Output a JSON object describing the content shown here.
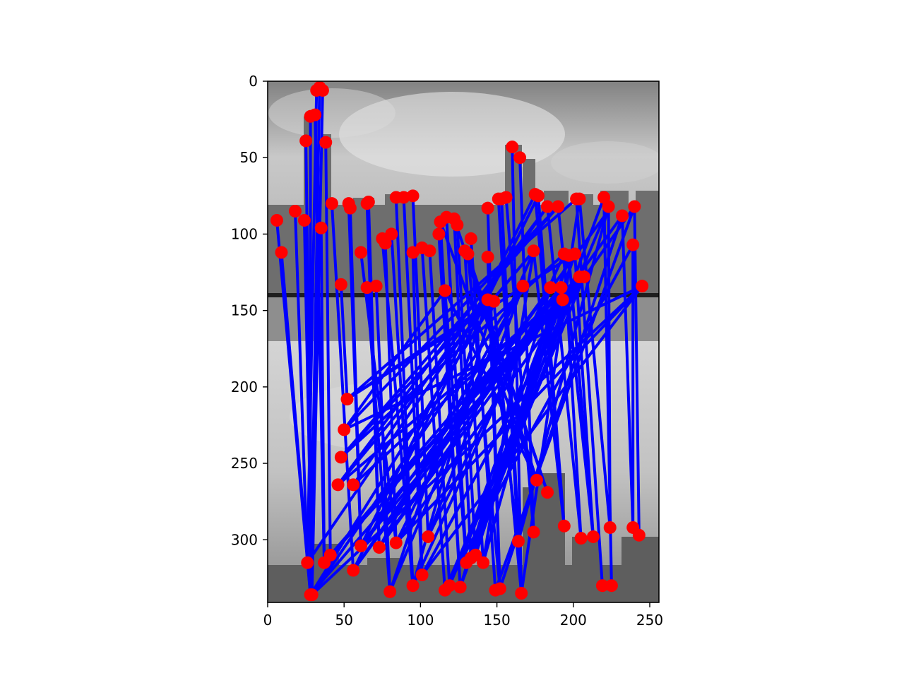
{
  "chart_data": {
    "type": "scatter",
    "title": "",
    "xlabel": "",
    "ylabel": "",
    "xlim": [
      0,
      256
    ],
    "ylim": [
      341,
      0
    ],
    "y_inverted": true,
    "grid": false,
    "x_ticks": [
      0,
      50,
      100,
      150,
      200,
      250
    ],
    "y_ticks": [
      0,
      50,
      100,
      150,
      200,
      250,
      300
    ],
    "background": "grayscale city-skyline photograph",
    "point_color": "#ff0000",
    "line_color": "#0000ff",
    "points": [
      [
        34,
        4
      ],
      [
        36,
        6
      ],
      [
        32,
        6
      ],
      [
        31,
        22
      ],
      [
        28,
        23
      ],
      [
        25,
        39
      ],
      [
        38,
        40
      ],
      [
        42,
        80
      ],
      [
        18,
        85
      ],
      [
        6,
        91
      ],
      [
        24,
        91
      ],
      [
        35,
        96
      ],
      [
        9,
        112
      ],
      [
        48,
        133
      ],
      [
        53,
        80
      ],
      [
        54,
        83
      ],
      [
        66,
        79
      ],
      [
        65,
        80
      ],
      [
        61,
        112
      ],
      [
        65,
        135
      ],
      [
        71,
        134
      ],
      [
        75,
        103
      ],
      [
        81,
        100
      ],
      [
        77,
        106
      ],
      [
        84,
        76
      ],
      [
        89,
        76
      ],
      [
        95,
        75
      ],
      [
        95,
        112
      ],
      [
        101,
        109
      ],
      [
        106,
        111
      ],
      [
        112,
        100
      ],
      [
        113,
        92
      ],
      [
        117,
        89
      ],
      [
        122,
        90
      ],
      [
        124,
        94
      ],
      [
        133,
        103
      ],
      [
        129,
        111
      ],
      [
        131,
        113
      ],
      [
        116,
        137
      ],
      [
        144,
        115
      ],
      [
        144,
        143
      ],
      [
        148,
        144
      ],
      [
        144,
        83
      ],
      [
        153,
        77
      ],
      [
        151,
        77
      ],
      [
        156,
        76
      ],
      [
        160,
        43
      ],
      [
        165,
        50
      ],
      [
        175,
        74
      ],
      [
        177,
        75
      ],
      [
        174,
        111
      ],
      [
        167,
        134
      ],
      [
        183,
        82
      ],
      [
        190,
        82
      ],
      [
        185,
        135
      ],
      [
        192,
        135
      ],
      [
        194,
        113
      ],
      [
        197,
        114
      ],
      [
        202,
        77
      ],
      [
        204,
        77
      ],
      [
        201,
        113
      ],
      [
        204,
        128
      ],
      [
        207,
        128
      ],
      [
        193,
        143
      ],
      [
        220,
        76
      ],
      [
        223,
        82
      ],
      [
        232,
        88
      ],
      [
        240,
        82
      ],
      [
        239,
        107
      ],
      [
        245,
        134
      ],
      [
        52,
        208
      ],
      [
        50,
        228
      ],
      [
        48,
        246
      ],
      [
        46,
        264
      ],
      [
        56,
        264
      ],
      [
        176,
        261
      ],
      [
        183,
        269
      ],
      [
        26,
        315
      ],
      [
        29,
        336
      ],
      [
        28,
        336
      ],
      [
        37,
        315
      ],
      [
        41,
        310
      ],
      [
        56,
        320
      ],
      [
        61,
        304
      ],
      [
        73,
        305
      ],
      [
        84,
        302
      ],
      [
        80,
        334
      ],
      [
        95,
        330
      ],
      [
        101,
        323
      ],
      [
        105,
        298
      ],
      [
        116,
        333
      ],
      [
        119,
        330
      ],
      [
        126,
        331
      ],
      [
        130,
        315
      ],
      [
        133,
        312
      ],
      [
        136,
        310
      ],
      [
        141,
        315
      ],
      [
        149,
        333
      ],
      [
        152,
        332
      ],
      [
        164,
        301
      ],
      [
        166,
        335
      ],
      [
        174,
        295
      ],
      [
        194,
        291
      ],
      [
        205,
        299
      ],
      [
        213,
        298
      ],
      [
        219,
        330
      ],
      [
        224,
        292
      ],
      [
        225,
        330
      ],
      [
        239,
        292
      ],
      [
        243,
        297
      ]
    ],
    "segments": [
      [
        34,
        4,
        28,
        336
      ],
      [
        36,
        6,
        29,
        336
      ],
      [
        32,
        6,
        26,
        315
      ],
      [
        31,
        22,
        37,
        315
      ],
      [
        28,
        23,
        28,
        336
      ],
      [
        25,
        39,
        29,
        336
      ],
      [
        38,
        40,
        41,
        310
      ],
      [
        42,
        80,
        56,
        320
      ],
      [
        18,
        85,
        26,
        315
      ],
      [
        6,
        91,
        28,
        336
      ],
      [
        24,
        91,
        29,
        336
      ],
      [
        35,
        96,
        37,
        315
      ],
      [
        9,
        112,
        28,
        336
      ],
      [
        48,
        133,
        52,
        208
      ],
      [
        53,
        80,
        61,
        304
      ],
      [
        54,
        83,
        61,
        304
      ],
      [
        66,
        79,
        73,
        305
      ],
      [
        65,
        80,
        73,
        305
      ],
      [
        61,
        112,
        84,
        302
      ],
      [
        65,
        135,
        80,
        334
      ],
      [
        71,
        134,
        80,
        334
      ],
      [
        75,
        103,
        95,
        330
      ],
      [
        81,
        100,
        95,
        330
      ],
      [
        77,
        106,
        84,
        302
      ],
      [
        84,
        76,
        95,
        330
      ],
      [
        89,
        76,
        101,
        323
      ],
      [
        95,
        75,
        105,
        298
      ],
      [
        95,
        112,
        101,
        323
      ],
      [
        101,
        109,
        116,
        333
      ],
      [
        106,
        111,
        119,
        330
      ],
      [
        112,
        100,
        126,
        331
      ],
      [
        113,
        92,
        126,
        331
      ],
      [
        117,
        89,
        130,
        315
      ],
      [
        122,
        90,
        133,
        312
      ],
      [
        124,
        94,
        136,
        310
      ],
      [
        133,
        103,
        149,
        333
      ],
      [
        129,
        111,
        141,
        315
      ],
      [
        131,
        113,
        152,
        332
      ],
      [
        116,
        137,
        130,
        315
      ],
      [
        144,
        115,
        152,
        332
      ],
      [
        144,
        143,
        164,
        301
      ],
      [
        148,
        144,
        166,
        335
      ],
      [
        144,
        83,
        152,
        332
      ],
      [
        153,
        77,
        166,
        335
      ],
      [
        151,
        77,
        164,
        301
      ],
      [
        156,
        76,
        174,
        295
      ],
      [
        160,
        43,
        166,
        335
      ],
      [
        165,
        50,
        174,
        295
      ],
      [
        175,
        74,
        194,
        291
      ],
      [
        177,
        75,
        194,
        291
      ],
      [
        174,
        111,
        194,
        291
      ],
      [
        183,
        82,
        205,
        299
      ],
      [
        190,
        82,
        213,
        298
      ],
      [
        194,
        113,
        205,
        299
      ],
      [
        197,
        114,
        213,
        298
      ],
      [
        202,
        77,
        219,
        330
      ],
      [
        204,
        77,
        224,
        292
      ],
      [
        201,
        113,
        213,
        298
      ],
      [
        220,
        76,
        225,
        330
      ],
      [
        223,
        82,
        224,
        292
      ],
      [
        232,
        88,
        239,
        292
      ],
      [
        240,
        82,
        243,
        297
      ],
      [
        239,
        107,
        239,
        292
      ],
      [
        245,
        134,
        29,
        336
      ],
      [
        207,
        128,
        28,
        336
      ],
      [
        204,
        128,
        37,
        315
      ],
      [
        193,
        143,
        41,
        310
      ],
      [
        192,
        135,
        56,
        320
      ],
      [
        185,
        135,
        61,
        304
      ],
      [
        167,
        134,
        73,
        305
      ],
      [
        201,
        113,
        52,
        208
      ],
      [
        194,
        113,
        48,
        246
      ],
      [
        174,
        111,
        46,
        264
      ],
      [
        183,
        82,
        56,
        264
      ],
      [
        190,
        82,
        50,
        228
      ],
      [
        245,
        134,
        84,
        302
      ],
      [
        207,
        128,
        101,
        323
      ],
      [
        204,
        128,
        116,
        333
      ],
      [
        192,
        135,
        119,
        330
      ],
      [
        167,
        134,
        105,
        298
      ],
      [
        144,
        143,
        80,
        334
      ],
      [
        148,
        144,
        95,
        330
      ],
      [
        185,
        135,
        126,
        331
      ],
      [
        193,
        143,
        130,
        315
      ],
      [
        201,
        113,
        133,
        312
      ],
      [
        197,
        114,
        136,
        310
      ],
      [
        174,
        111,
        141,
        315
      ],
      [
        240,
        82,
        149,
        333
      ],
      [
        232,
        88,
        152,
        332
      ],
      [
        223,
        82,
        164,
        301
      ],
      [
        204,
        77,
        166,
        335
      ],
      [
        202,
        77,
        52,
        208
      ],
      [
        190,
        82,
        48,
        246
      ],
      [
        183,
        82,
        46,
        264
      ],
      [
        177,
        75,
        56,
        320
      ],
      [
        175,
        74,
        61,
        304
      ],
      [
        245,
        134,
        50,
        228
      ],
      [
        207,
        128,
        46,
        264
      ],
      [
        204,
        128,
        56,
        264
      ],
      [
        193,
        143,
        61,
        304
      ],
      [
        192,
        135,
        73,
        305
      ],
      [
        167,
        134,
        84,
        302
      ],
      [
        148,
        144,
        52,
        208
      ],
      [
        144,
        143,
        48,
        246
      ],
      [
        116,
        137,
        50,
        228
      ],
      [
        245,
        134,
        101,
        323
      ],
      [
        239,
        107,
        116,
        333
      ],
      [
        223,
        82,
        119,
        330
      ],
      [
        220,
        76,
        126,
        331
      ],
      [
        185,
        135,
        105,
        298
      ],
      [
        207,
        128,
        130,
        315
      ],
      [
        204,
        128,
        133,
        312
      ],
      [
        201,
        113,
        136,
        310
      ],
      [
        197,
        114,
        141,
        315
      ],
      [
        194,
        113,
        95,
        330
      ],
      [
        174,
        111,
        80,
        334
      ],
      [
        240,
        82,
        84,
        302
      ],
      [
        232,
        88,
        73,
        305
      ],
      [
        225,
        82,
        61,
        304
      ],
      [
        193,
        143,
        37,
        315
      ],
      [
        192,
        135,
        41,
        310
      ],
      [
        185,
        135,
        56,
        320
      ],
      [
        167,
        134,
        29,
        336
      ],
      [
        148,
        144,
        28,
        336
      ],
      [
        144,
        143,
        26,
        315
      ],
      [
        116,
        137,
        176,
        261
      ],
      [
        131,
        113,
        183,
        269
      ],
      [
        129,
        111,
        176,
        261
      ],
      [
        122,
        90,
        183,
        269
      ],
      [
        113,
        92,
        176,
        261
      ]
    ]
  }
}
